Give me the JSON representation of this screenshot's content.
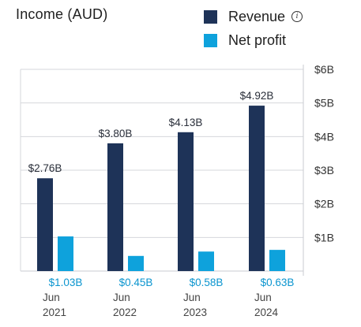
{
  "header": {
    "title": "Income (AUD)",
    "info_icon": "info-icon"
  },
  "legend": [
    {
      "label": "Revenue",
      "color": "#1e3358"
    },
    {
      "label": "Net profit",
      "color": "#0ea2dc"
    }
  ],
  "chart_data": {
    "type": "bar",
    "title": "Income (AUD)",
    "categories": [
      [
        "Jun",
        "2021"
      ],
      [
        "Jun",
        "2022"
      ],
      [
        "Jun",
        "2023"
      ],
      [
        "Jun",
        "2024"
      ]
    ],
    "series": [
      {
        "name": "Revenue",
        "color": "#1e3358",
        "values": [
          2.76,
          3.8,
          4.13,
          4.92
        ],
        "labels": [
          "$2.76B",
          "$3.80B",
          "$4.13B",
          "$4.92B"
        ]
      },
      {
        "name": "Net profit",
        "color": "#0ea2dc",
        "values": [
          1.03,
          0.45,
          0.58,
          0.63
        ],
        "labels": [
          "$1.03B",
          "$0.45B",
          "$0.58B",
          "$0.63B"
        ]
      }
    ],
    "ylim": [
      0,
      6
    ],
    "y_ticks": [
      1,
      2,
      3,
      4,
      5,
      6
    ],
    "y_tick_labels": [
      "$1B",
      "$2B",
      "$3B",
      "$4B",
      "$5B",
      "$6B"
    ],
    "y_axis_side": "right",
    "grid": true,
    "legend_position": "top-right"
  }
}
